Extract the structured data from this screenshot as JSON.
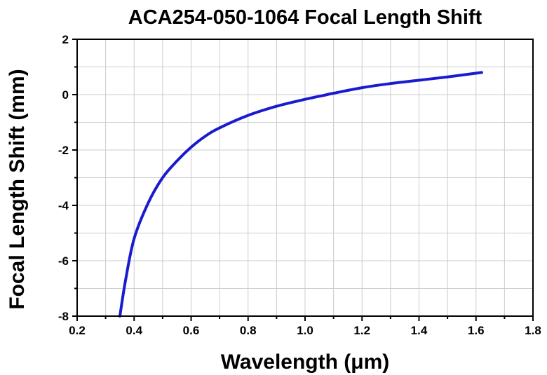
{
  "chart_data": {
    "type": "line",
    "title": "ACA254-050-1064 Focal Length Shift",
    "xlabel": "Wavelength (μm)",
    "ylabel": "Focal Length Shift (mm)",
    "xlim": [
      0.2,
      1.8
    ],
    "ylim": [
      -8,
      2
    ],
    "xticks": [
      "0.2",
      "0.4",
      "0.6",
      "0.8",
      "1.0",
      "1.2",
      "1.4",
      "1.6",
      "1.8"
    ],
    "yticks": [
      "-8",
      "-6",
      "-4",
      "-2",
      "0",
      "2"
    ],
    "grid": true,
    "series": [
      {
        "color": "#1a1ad0",
        "x": [
          0.35,
          0.37,
          0.4,
          0.45,
          0.5,
          0.55,
          0.6,
          0.65,
          0.7,
          0.8,
          0.9,
          1.0,
          1.064,
          1.1,
          1.2,
          1.3,
          1.4,
          1.5,
          1.62
        ],
        "y": [
          -8.0,
          -6.7,
          -5.2,
          -3.9,
          -3.0,
          -2.4,
          -1.9,
          -1.5,
          -1.2,
          -0.75,
          -0.42,
          -0.17,
          -0.03,
          0.05,
          0.25,
          0.4,
          0.52,
          0.64,
          0.8
        ]
      }
    ]
  }
}
